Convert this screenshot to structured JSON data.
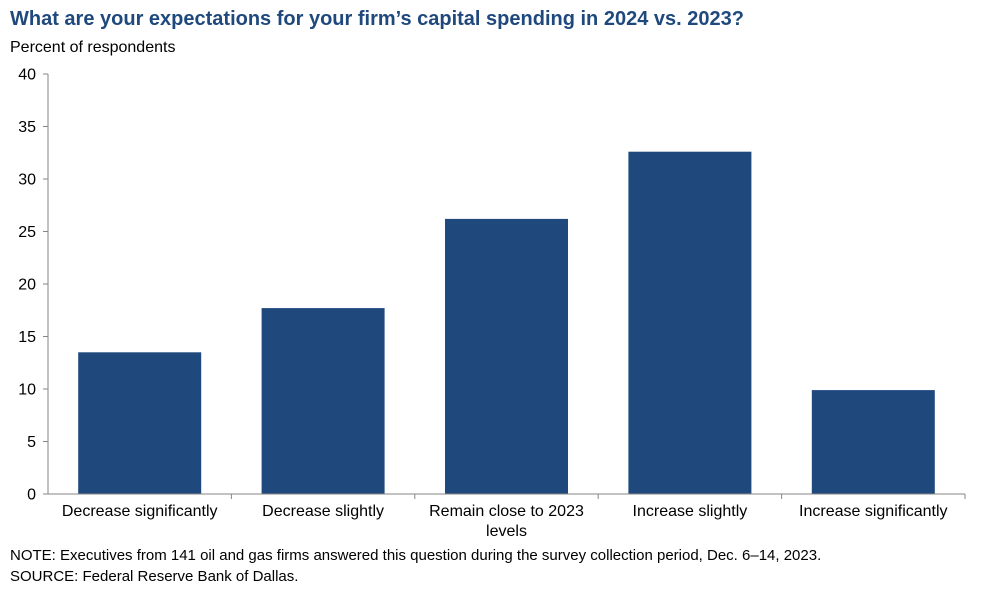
{
  "header": {
    "title": "What are your expectations for your firm’s capital spending in 2024 vs. 2023?",
    "subtitle": "Percent of respondents"
  },
  "notes": {
    "note": "NOTE:  Executives  from  141  oil  and  gas  firms  answered  this  question  during  the  survey  collection  period,  Dec.  6–14,  2023.",
    "source": "SOURCE:  Federal  Reserve  Bank  of  Dallas."
  },
  "chart_data": {
    "type": "bar",
    "title": "What are your expectations for your firm’s capital spending in 2024 vs. 2023?",
    "ylabel": "Percent of respondents",
    "xlabel": "",
    "categories": [
      [
        "Decrease significantly"
      ],
      [
        "Decrease slightly"
      ],
      [
        "Remain close to 2023",
        "levels"
      ],
      [
        "Increase slightly"
      ],
      [
        "Increase significantly"
      ]
    ],
    "values": [
      13.5,
      17.7,
      26.2,
      32.6,
      9.9
    ],
    "ylim": [
      0,
      40
    ],
    "yticks": [
      0,
      5,
      10,
      15,
      20,
      25,
      30,
      35,
      40
    ],
    "bar_color": "#1f497d",
    "grid": false,
    "legend": "none"
  }
}
